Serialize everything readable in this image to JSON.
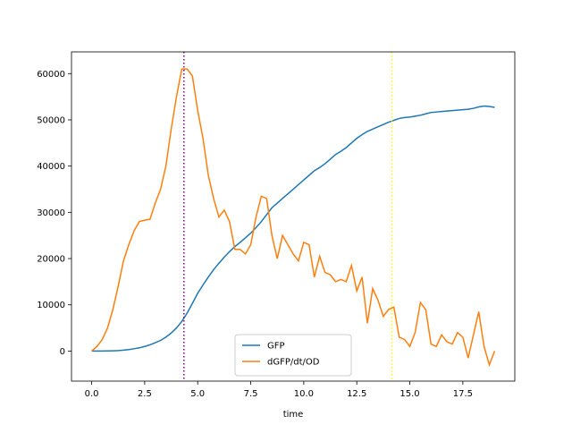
{
  "chart_data": {
    "type": "line",
    "x_label": "time",
    "x": [
      0,
      0.25,
      0.5,
      0.75,
      1,
      1.25,
      1.5,
      1.75,
      2,
      2.25,
      2.5,
      2.75,
      3,
      3.25,
      3.5,
      3.75,
      4,
      4.25,
      4.5,
      4.75,
      5,
      5.25,
      5.5,
      5.75,
      6,
      6.25,
      6.5,
      6.75,
      7,
      7.25,
      7.5,
      7.75,
      8,
      8.25,
      8.5,
      8.75,
      9,
      9.25,
      9.5,
      9.75,
      10,
      10.25,
      10.5,
      10.75,
      11,
      11.25,
      11.5,
      11.75,
      12,
      12.25,
      12.5,
      12.75,
      13,
      13.25,
      13.5,
      13.75,
      14,
      14.25,
      14.5,
      14.75,
      15,
      15.25,
      15.5,
      15.75,
      16,
      16.25,
      16.5,
      16.75,
      17,
      17.25,
      17.5,
      17.75,
      18,
      18.25,
      18.5,
      18.75,
      19
    ],
    "series": [
      {
        "name": "GFP",
        "color": "#1f77b4",
        "values": [
          0,
          0,
          0,
          20,
          50,
          100,
          200,
          330,
          500,
          700,
          1000,
          1350,
          1800,
          2300,
          3000,
          3900,
          5000,
          6400,
          8200,
          10300,
          12500,
          14300,
          16000,
          17600,
          19000,
          20300,
          21500,
          22600,
          23500,
          24500,
          25500,
          26700,
          28000,
          29500,
          31000,
          32000,
          33000,
          34000,
          35000,
          36000,
          37000,
          38000,
          39000,
          39700,
          40500,
          41500,
          42500,
          43200,
          44000,
          45000,
          46000,
          46800,
          47500,
          48000,
          48500,
          49000,
          49500,
          49900,
          50300,
          50500,
          50600,
          50800,
          51000,
          51300,
          51600,
          51700,
          51800,
          51900,
          52000,
          52100,
          52200,
          52300,
          52500,
          52800,
          53000,
          52900,
          52700
        ]
      },
      {
        "name": "dGFP/dt/OD",
        "color": "#ff7f0e",
        "values": [
          0,
          1000,
          2500,
          5000,
          9000,
          14000,
          19500,
          23000,
          26000,
          28000,
          28300,
          28500,
          32000,
          35000,
          40000,
          48000,
          55000,
          61000,
          61000,
          59500,
          52000,
          46000,
          38000,
          33000,
          29000,
          30500,
          28000,
          22000,
          22000,
          21000,
          23000,
          29000,
          33500,
          33000,
          25000,
          20000,
          25000,
          23000,
          21000,
          19500,
          23500,
          23000,
          16000,
          20500,
          17000,
          16500,
          15000,
          15500,
          15000,
          18500,
          13000,
          16000,
          6000,
          13500,
          11000,
          7500,
          9000,
          9500,
          3000,
          2500,
          1000,
          4000,
          10500,
          9000,
          1500,
          1000,
          3500,
          2000,
          1500,
          4000,
          3000,
          -1500,
          3500,
          8500,
          1000,
          -3000,
          0
        ]
      }
    ],
    "vlines": [
      {
        "x": 4.35,
        "color": "purple"
      },
      {
        "x": 14.15,
        "color": "yellow"
      }
    ],
    "xlim": [
      -0.95,
      19.95
    ],
    "ylim": [
      -6500,
      64700
    ],
    "xticks": [
      {
        "value": 0,
        "label": "0.0"
      },
      2.5,
      {
        "value": 5,
        "label": "5.0"
      },
      7.5,
      {
        "value": 10,
        "label": "10.0"
      },
      12.5,
      {
        "value": 15,
        "label": "15.0"
      },
      17.5
    ],
    "yticks": [
      0,
      10000,
      20000,
      30000,
      40000,
      50000,
      60000
    ],
    "legend": "lower center"
  }
}
